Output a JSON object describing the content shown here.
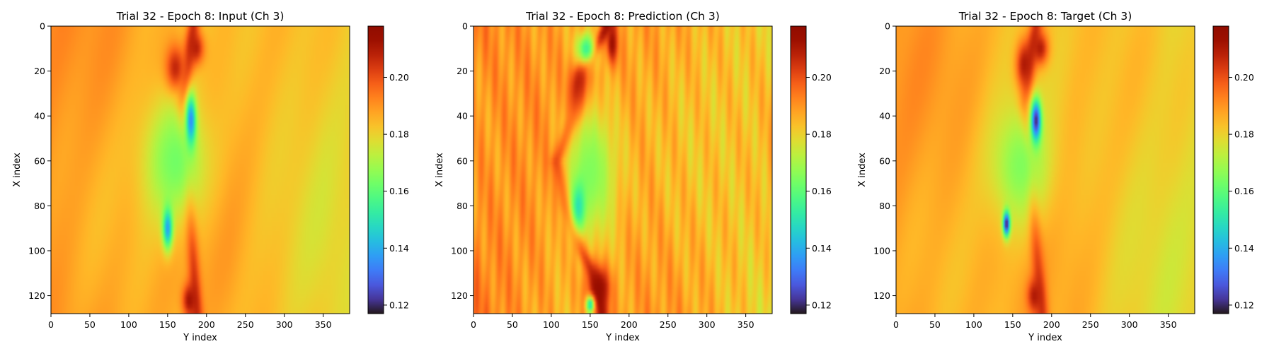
{
  "chart_data": [
    {
      "type": "heatmap",
      "title": "Trial 32 - Epoch 8: Input (Ch 3)",
      "xlabel": "Y index",
      "ylabel": "X index",
      "xlim": [
        0,
        384
      ],
      "ylim": [
        128,
        0
      ],
      "xticks": [
        0,
        50,
        100,
        150,
        200,
        250,
        300,
        350
      ],
      "yticks": [
        0,
        20,
        40,
        60,
        80,
        100,
        120
      ],
      "colorbar": {
        "min": 0.117,
        "max": 0.218,
        "ticks": [
          0.12,
          0.14,
          0.16,
          0.18,
          0.2
        ],
        "tick_labels": [
          "0.12",
          "0.14",
          "0.16",
          "0.18",
          "0.20"
        ]
      },
      "colormap": "turbo",
      "background_value": 0.186,
      "features": [
        {
          "kind": "high_streak",
          "path": [
            [
              0,
              183
            ],
            [
              20,
              176
            ],
            [
              35,
              168
            ],
            [
              55,
              172
            ],
            [
              80,
              178
            ],
            [
              100,
              182
            ],
            [
              120,
              186
            ],
            [
              128,
              188
            ]
          ],
          "value": 0.205,
          "spread": 8
        },
        {
          "kind": "high_blob",
          "x": 20,
          "y": 160,
          "rx": 12,
          "ry": 14,
          "value": 0.214
        },
        {
          "kind": "high_blob",
          "x": 10,
          "y": 186,
          "rx": 8,
          "ry": 12,
          "value": 0.21
        },
        {
          "kind": "high_blob",
          "x": 122,
          "y": 178,
          "rx": 8,
          "ry": 10,
          "value": 0.212
        },
        {
          "kind": "low_region",
          "x": 60,
          "y": 160,
          "rx": 32,
          "ry": 45,
          "value": 0.163
        },
        {
          "kind": "low_blob",
          "x": 42,
          "y": 180,
          "rx": 12,
          "ry": 7,
          "value": 0.135
        },
        {
          "kind": "low_blob",
          "x": 90,
          "y": 150,
          "rx": 10,
          "ry": 7,
          "value": 0.138
        }
      ]
    },
    {
      "type": "heatmap",
      "title": "Trial 32 - Epoch 8: Prediction (Ch 3)",
      "xlabel": "Y index",
      "ylabel": "X index",
      "xlim": [
        0,
        384
      ],
      "ylim": [
        128,
        0
      ],
      "xticks": [
        0,
        50,
        100,
        150,
        200,
        250,
        300,
        350
      ],
      "yticks": [
        0,
        20,
        40,
        60,
        80,
        100,
        120
      ],
      "colorbar": {
        "min": 0.117,
        "max": 0.218,
        "ticks": [
          0.12,
          0.14,
          0.16,
          0.18,
          0.2
        ],
        "tick_labels": [
          "0.12",
          "0.14",
          "0.16",
          "0.18",
          "0.20"
        ]
      },
      "colormap": "turbo",
      "background_value": 0.188,
      "features": [
        {
          "kind": "high_streak",
          "path": [
            [
              0,
              172
            ],
            [
              20,
              140
            ],
            [
              40,
              130
            ],
            [
              60,
              108
            ],
            [
              80,
              120
            ],
            [
              100,
              140
            ],
            [
              115,
              160
            ],
            [
              128,
              165
            ]
          ],
          "value": 0.212,
          "spread": 9
        },
        {
          "kind": "high_blob",
          "x": 30,
          "y": 135,
          "rx": 14,
          "ry": 12,
          "value": 0.218
        },
        {
          "kind": "high_blob",
          "x": 115,
          "y": 160,
          "rx": 10,
          "ry": 16,
          "value": 0.218
        },
        {
          "kind": "high_blob",
          "x": 8,
          "y": 178,
          "rx": 10,
          "ry": 8,
          "value": 0.214
        },
        {
          "kind": "low_region",
          "x": 65,
          "y": 150,
          "rx": 35,
          "ry": 40,
          "value": 0.165
        },
        {
          "kind": "low_blob",
          "x": 10,
          "y": 145,
          "rx": 8,
          "ry": 14,
          "value": 0.155
        },
        {
          "kind": "low_blob",
          "x": 80,
          "y": 135,
          "rx": 12,
          "ry": 10,
          "value": 0.15
        },
        {
          "kind": "low_blob",
          "x": 124,
          "y": 150,
          "rx": 4,
          "ry": 6,
          "value": 0.15
        }
      ],
      "texture": true
    },
    {
      "type": "heatmap",
      "title": "Trial 32 - Epoch 8: Target (Ch 3)",
      "xlabel": "Y index",
      "ylabel": "X index",
      "xlim": [
        0,
        384
      ],
      "ylim": [
        128,
        0
      ],
      "xticks": [
        0,
        50,
        100,
        150,
        200,
        250,
        300,
        350
      ],
      "yticks": [
        0,
        20,
        40,
        60,
        80,
        100,
        120
      ],
      "colorbar": {
        "min": 0.117,
        "max": 0.218,
        "ticks": [
          0.12,
          0.14,
          0.16,
          0.18,
          0.2
        ],
        "tick_labels": [
          "0.12",
          "0.14",
          "0.16",
          "0.18",
          "0.20"
        ]
      },
      "colormap": "turbo",
      "background_value": 0.185,
      "features": [
        {
          "kind": "high_streak",
          "path": [
            [
              0,
              180
            ],
            [
              20,
              170
            ],
            [
              35,
              165
            ],
            [
              55,
              170
            ],
            [
              80,
              176
            ],
            [
              105,
              182
            ],
            [
              128,
              188
            ]
          ],
          "value": 0.204,
          "spread": 8
        },
        {
          "kind": "high_blob",
          "x": 18,
          "y": 165,
          "rx": 12,
          "ry": 12,
          "value": 0.213
        },
        {
          "kind": "high_blob",
          "x": 10,
          "y": 185,
          "rx": 8,
          "ry": 12,
          "value": 0.21
        },
        {
          "kind": "high_blob",
          "x": 120,
          "y": 178,
          "rx": 8,
          "ry": 10,
          "value": 0.21
        },
        {
          "kind": "low_region",
          "x": 62,
          "y": 160,
          "rx": 30,
          "ry": 42,
          "value": 0.165
        },
        {
          "kind": "low_blob",
          "x": 42,
          "y": 180,
          "rx": 10,
          "ry": 7,
          "value": 0.12
        },
        {
          "kind": "low_blob",
          "x": 88,
          "y": 142,
          "rx": 6,
          "ry": 5,
          "value": 0.118
        }
      ]
    }
  ]
}
